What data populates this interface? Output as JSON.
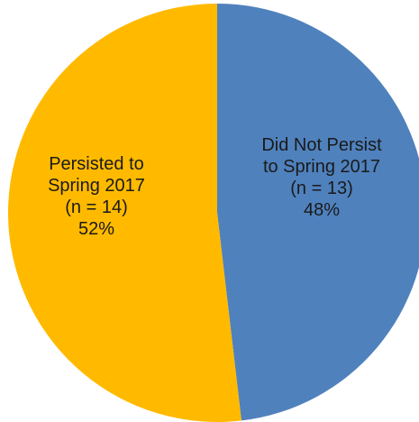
{
  "chart_data": {
    "type": "pie",
    "categories": [
      "Did Not Persist to Spring 2017",
      "Persisted to Spring 2017"
    ],
    "values": [
      13,
      14
    ],
    "percents": [
      48,
      52
    ],
    "colors": [
      "#4f81bd",
      "#ffba00"
    ],
    "labels": [
      {
        "lines": [
          "Did Not Persist",
          "to Spring 2017",
          "(n = 13)",
          "48%"
        ]
      },
      {
        "lines": [
          "Persisted to",
          "Spring 2017",
          "(n = 14)",
          "52%"
        ]
      }
    ]
  }
}
